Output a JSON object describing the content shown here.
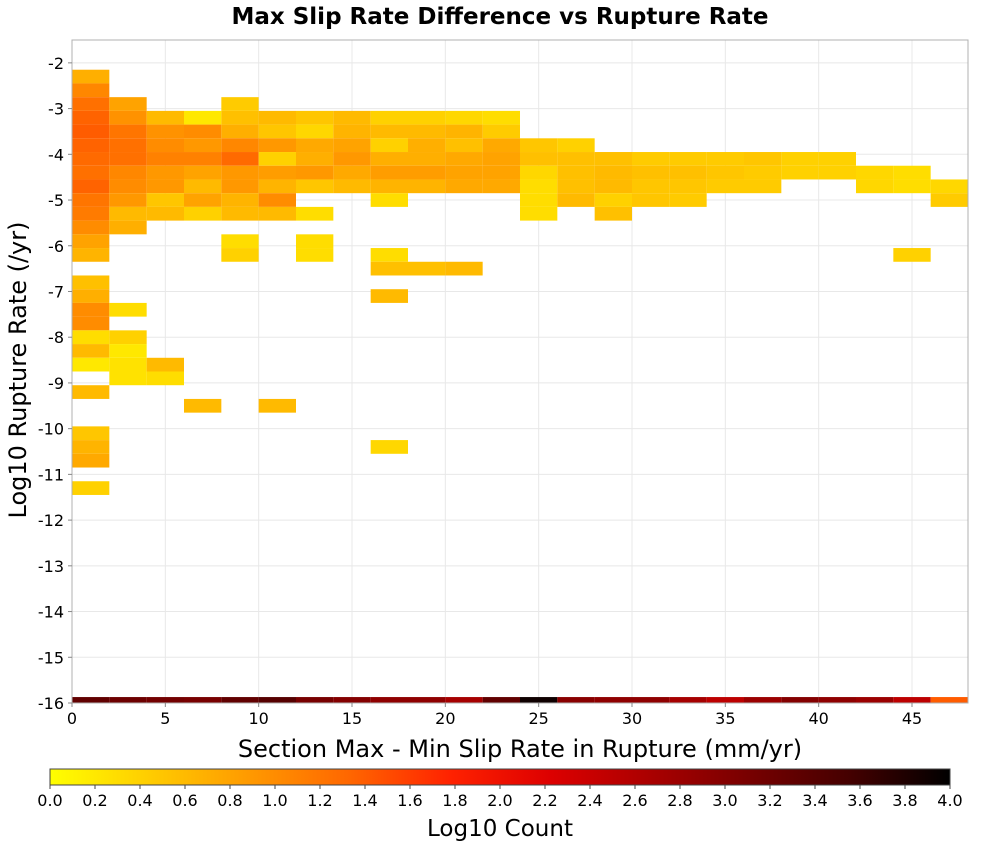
{
  "chart_data": {
    "type": "heatmap",
    "title": "Max Slip Rate Difference vs Rupture Rate",
    "xlabel": "Section Max - Min Slip Rate in Rupture (mm/yr)",
    "ylabel": "Log10 Rupture Rate (/yr)",
    "xlim": [
      0,
      48
    ],
    "ylim": [
      -16,
      -1.5
    ],
    "x_ticks": [
      "0",
      "5",
      "10",
      "15",
      "20",
      "25",
      "30",
      "35",
      "40",
      "45"
    ],
    "x_tick_values": [
      0,
      5,
      10,
      15,
      20,
      25,
      30,
      35,
      40,
      45
    ],
    "y_ticks": [
      "-2",
      "-3",
      "-4",
      "-5",
      "-6",
      "-7",
      "-8",
      "-9",
      "-10",
      "-11",
      "-12",
      "-13",
      "-14",
      "-15",
      "-16"
    ],
    "y_tick_values": [
      -2,
      -3,
      -4,
      -5,
      -6,
      -7,
      -8,
      -9,
      -10,
      -11,
      -12,
      -13,
      -14,
      -15,
      -16
    ],
    "grid": true,
    "x_bin_width": 2,
    "y_bin_height": 0.3,
    "colorbar": {
      "label": "Log10 Count",
      "min": 0,
      "max": 4,
      "ticks": [
        "0.0",
        "0.2",
        "0.4",
        "0.6",
        "0.8",
        "1.0",
        "1.2",
        "1.4",
        "1.6",
        "1.8",
        "2.0",
        "2.2",
        "2.4",
        "2.6",
        "2.8",
        "3.0",
        "3.2",
        "3.4",
        "3.6",
        "3.8",
        "4.0"
      ],
      "stops": [
        "#ffff00",
        "#ffcc00",
        "#ff9900",
        "#ff6600",
        "#ff2200",
        "#dd0000",
        "#aa0000",
        "#770000",
        "#440000",
        "#000000"
      ]
    },
    "cells": [
      [
        0,
        -2.3,
        0.7
      ],
      [
        0,
        -2.6,
        1.05
      ],
      [
        0,
        -2.9,
        1.25
      ],
      [
        0,
        -3.2,
        1.35
      ],
      [
        0,
        -3.5,
        1.4
      ],
      [
        0,
        -3.8,
        1.35
      ],
      [
        0,
        -4.1,
        1.3
      ],
      [
        0,
        -4.4,
        1.25
      ],
      [
        0,
        -4.7,
        1.35
      ],
      [
        0,
        -5.0,
        1.2
      ],
      [
        0,
        -5.3,
        1.15
      ],
      [
        0,
        -5.6,
        1.0
      ],
      [
        0,
        -5.9,
        0.8
      ],
      [
        0,
        -6.2,
        0.65
      ],
      [
        0,
        -6.8,
        0.55
      ],
      [
        0,
        -7.1,
        0.7
      ],
      [
        0,
        -7.4,
        1.0
      ],
      [
        0,
        -7.7,
        1.0
      ],
      [
        0,
        -8.0,
        0.3
      ],
      [
        0,
        -8.3,
        0.6
      ],
      [
        0,
        -8.6,
        0.2
      ],
      [
        0,
        -9.2,
        0.6
      ],
      [
        0,
        -10.1,
        0.5
      ],
      [
        0,
        -10.4,
        0.65
      ],
      [
        0,
        -10.7,
        0.75
      ],
      [
        0,
        -11.3,
        0.4
      ],
      [
        2,
        -2.9,
        0.8
      ],
      [
        2,
        -3.2,
        0.95
      ],
      [
        2,
        -3.5,
        1.2
      ],
      [
        2,
        -3.8,
        1.25
      ],
      [
        2,
        -4.1,
        1.25
      ],
      [
        2,
        -4.4,
        1.05
      ],
      [
        2,
        -4.7,
        1.0
      ],
      [
        2,
        -5.0,
        0.9
      ],
      [
        2,
        -5.3,
        0.6
      ],
      [
        2,
        -5.6,
        0.7
      ],
      [
        2,
        -7.4,
        0.3
      ],
      [
        2,
        -8.0,
        0.4
      ],
      [
        2,
        -8.3,
        0.2
      ],
      [
        2,
        -8.6,
        0.25
      ],
      [
        2,
        -8.9,
        0.25
      ],
      [
        4,
        -3.2,
        0.6
      ],
      [
        4,
        -3.5,
        0.95
      ],
      [
        4,
        -3.8,
        1.0
      ],
      [
        4,
        -4.1,
        1.1
      ],
      [
        4,
        -4.4,
        0.9
      ],
      [
        4,
        -4.7,
        0.9
      ],
      [
        4,
        -5.0,
        0.5
      ],
      [
        4,
        -5.3,
        0.6
      ],
      [
        4,
        -8.6,
        0.6
      ],
      [
        4,
        -8.9,
        0.3
      ],
      [
        6,
        -3.2,
        0.2
      ],
      [
        6,
        -3.5,
        1.0
      ],
      [
        6,
        -3.8,
        0.9
      ],
      [
        6,
        -4.1,
        1.1
      ],
      [
        6,
        -4.4,
        0.8
      ],
      [
        6,
        -4.7,
        0.6
      ],
      [
        6,
        -5.0,
        0.8
      ],
      [
        6,
        -5.3,
        0.4
      ],
      [
        6,
        -9.5,
        0.6
      ],
      [
        8,
        -2.9,
        0.45
      ],
      [
        8,
        -3.2,
        0.55
      ],
      [
        8,
        -3.5,
        0.7
      ],
      [
        8,
        -3.8,
        1.05
      ],
      [
        8,
        -4.1,
        1.3
      ],
      [
        8,
        -4.4,
        0.9
      ],
      [
        8,
        -4.7,
        0.9
      ],
      [
        8,
        -5.0,
        0.65
      ],
      [
        8,
        -5.3,
        0.6
      ],
      [
        8,
        -5.9,
        0.3
      ],
      [
        8,
        -6.2,
        0.4
      ],
      [
        10,
        -3.2,
        0.6
      ],
      [
        10,
        -3.5,
        0.5
      ],
      [
        10,
        -3.8,
        0.9
      ],
      [
        10,
        -4.1,
        0.4
      ],
      [
        10,
        -4.4,
        0.85
      ],
      [
        10,
        -4.7,
        0.65
      ],
      [
        10,
        -5.0,
        1.0
      ],
      [
        10,
        -5.3,
        0.6
      ],
      [
        10,
        -9.5,
        0.6
      ],
      [
        12,
        -3.2,
        0.5
      ],
      [
        12,
        -3.5,
        0.35
      ],
      [
        12,
        -3.8,
        0.75
      ],
      [
        12,
        -4.1,
        0.7
      ],
      [
        12,
        -4.4,
        0.9
      ],
      [
        12,
        -4.7,
        0.5
      ],
      [
        12,
        -5.3,
        0.3
      ],
      [
        12,
        -5.9,
        0.3
      ],
      [
        12,
        -6.2,
        0.3
      ],
      [
        14,
        -3.2,
        0.6
      ],
      [
        14,
        -3.5,
        0.65
      ],
      [
        14,
        -3.8,
        0.8
      ],
      [
        14,
        -4.1,
        0.9
      ],
      [
        14,
        -4.4,
        0.75
      ],
      [
        14,
        -4.7,
        0.6
      ],
      [
        16,
        -3.2,
        0.4
      ],
      [
        16,
        -3.5,
        0.6
      ],
      [
        16,
        -3.8,
        0.4
      ],
      [
        16,
        -4.1,
        0.7
      ],
      [
        16,
        -4.4,
        0.85
      ],
      [
        16,
        -4.7,
        0.65
      ],
      [
        16,
        -5.0,
        0.3
      ],
      [
        16,
        -6.2,
        0.3
      ],
      [
        16,
        -6.5,
        0.55
      ],
      [
        16,
        -7.1,
        0.6
      ],
      [
        16,
        -10.4,
        0.35
      ],
      [
        18,
        -3.2,
        0.4
      ],
      [
        18,
        -3.5,
        0.6
      ],
      [
        18,
        -3.8,
        0.7
      ],
      [
        18,
        -4.1,
        0.7
      ],
      [
        18,
        -4.4,
        0.85
      ],
      [
        18,
        -4.7,
        0.65
      ],
      [
        18,
        -6.5,
        0.55
      ],
      [
        20,
        -3.2,
        0.35
      ],
      [
        20,
        -3.5,
        0.65
      ],
      [
        20,
        -3.8,
        0.55
      ],
      [
        20,
        -4.1,
        0.75
      ],
      [
        20,
        -4.4,
        0.8
      ],
      [
        20,
        -4.7,
        0.75
      ],
      [
        20,
        -6.5,
        0.6
      ],
      [
        22,
        -3.2,
        0.3
      ],
      [
        22,
        -3.5,
        0.45
      ],
      [
        22,
        -3.8,
        0.75
      ],
      [
        22,
        -4.1,
        0.8
      ],
      [
        22,
        -4.4,
        0.8
      ],
      [
        22,
        -4.7,
        0.75
      ],
      [
        24,
        -3.8,
        0.5
      ],
      [
        24,
        -4.1,
        0.55
      ],
      [
        24,
        -4.4,
        0.35
      ],
      [
        24,
        -4.7,
        0.3
      ],
      [
        24,
        -5.0,
        0.3
      ],
      [
        24,
        -5.3,
        0.3
      ],
      [
        26,
        -3.8,
        0.4
      ],
      [
        26,
        -4.1,
        0.55
      ],
      [
        26,
        -4.4,
        0.55
      ],
      [
        26,
        -4.7,
        0.55
      ],
      [
        26,
        -5.0,
        0.6
      ],
      [
        28,
        -4.1,
        0.55
      ],
      [
        28,
        -4.4,
        0.6
      ],
      [
        28,
        -4.7,
        0.6
      ],
      [
        28,
        -5.0,
        0.4
      ],
      [
        28,
        -5.3,
        0.55
      ],
      [
        30,
        -4.1,
        0.45
      ],
      [
        30,
        -4.4,
        0.55
      ],
      [
        30,
        -4.7,
        0.5
      ],
      [
        30,
        -5.0,
        0.5
      ],
      [
        32,
        -4.1,
        0.45
      ],
      [
        32,
        -4.4,
        0.55
      ],
      [
        32,
        -4.7,
        0.5
      ],
      [
        32,
        -5.0,
        0.45
      ],
      [
        34,
        -4.1,
        0.45
      ],
      [
        34,
        -4.4,
        0.5
      ],
      [
        34,
        -4.7,
        0.45
      ],
      [
        36,
        -4.1,
        0.5
      ],
      [
        36,
        -4.4,
        0.45
      ],
      [
        36,
        -4.7,
        0.45
      ],
      [
        38,
        -4.1,
        0.4
      ],
      [
        38,
        -4.4,
        0.4
      ],
      [
        40,
        -4.1,
        0.4
      ],
      [
        40,
        -4.4,
        0.4
      ],
      [
        42,
        -4.4,
        0.35
      ],
      [
        42,
        -4.7,
        0.35
      ],
      [
        44,
        -4.4,
        0.3
      ],
      [
        44,
        -4.7,
        0.3
      ],
      [
        46,
        -4.7,
        0.35
      ],
      [
        46,
        -5.0,
        0.45
      ],
      [
        44,
        -6.2,
        0.4
      ],
      [
        0,
        -16,
        3.3
      ],
      [
        2,
        -16,
        3.2
      ],
      [
        4,
        -16,
        3.15
      ],
      [
        6,
        -16,
        3.1
      ],
      [
        8,
        -16,
        3.3
      ],
      [
        10,
        -16,
        3.4
      ],
      [
        12,
        -16,
        3.1
      ],
      [
        14,
        -16,
        3.0
      ],
      [
        16,
        -16,
        2.9
      ],
      [
        18,
        -16,
        2.9
      ],
      [
        20,
        -16,
        2.7
      ],
      [
        22,
        -16,
        3.3
      ],
      [
        24,
        -16,
        3.9
      ],
      [
        26,
        -16,
        2.95
      ],
      [
        28,
        -16,
        2.9
      ],
      [
        30,
        -16,
        2.9
      ],
      [
        32,
        -16,
        2.7
      ],
      [
        34,
        -16,
        2.5
      ],
      [
        36,
        -16,
        2.8
      ],
      [
        38,
        -16,
        3.0
      ],
      [
        40,
        -16,
        2.9
      ],
      [
        42,
        -16,
        2.8
      ],
      [
        44,
        -16,
        2.5
      ],
      [
        46,
        -16,
        1.4
      ]
    ]
  }
}
